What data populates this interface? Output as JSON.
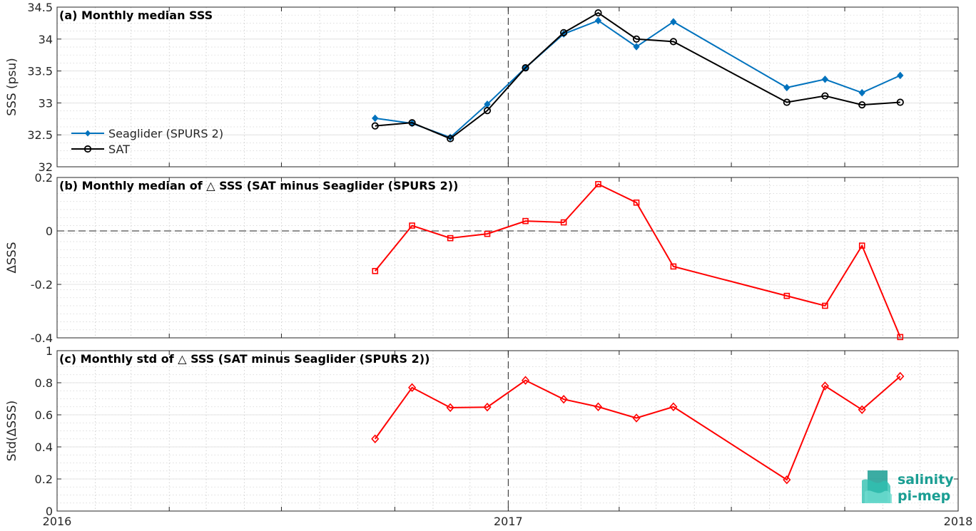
{
  "chart_data": [
    {
      "type": "line",
      "panel": "a",
      "title": "(a) Monthly median SSS",
      "ylabel": "SSS (psu)",
      "ylim": [
        32,
        34.5
      ],
      "yticks": [
        32,
        32.5,
        33,
        33.5,
        34,
        34.5
      ],
      "ytick_labels": [
        "32",
        "32.5",
        "33",
        "33.5",
        "34",
        "34.5"
      ],
      "xlim": [
        "2016-01-01",
        "2018-01-01"
      ],
      "grid": true,
      "legend_position": "left",
      "reference_x": "2017-01-01",
      "series": [
        {
          "name": "Seaglider (SPURS 2)",
          "color": "#0072bd",
          "marker": "filled-diamond",
          "x": [
            "2016-09-15",
            "2016-10-15",
            "2016-11-15",
            "2016-12-15",
            "2017-01-15",
            "2017-02-15",
            "2017-03-15",
            "2017-04-15",
            "2017-05-15",
            "2017-08-15",
            "2017-09-15",
            "2017-10-15",
            "2017-11-15"
          ],
          "values": [
            32.76,
            32.68,
            32.46,
            32.98,
            33.55,
            34.08,
            34.29,
            33.88,
            34.27,
            33.24,
            33.37,
            33.16,
            33.43
          ]
        },
        {
          "name": "SAT",
          "color": "#000000",
          "marker": "open-circle",
          "x": [
            "2016-09-15",
            "2016-10-15",
            "2016-11-15",
            "2016-12-15",
            "2017-01-15",
            "2017-02-15",
            "2017-03-15",
            "2017-04-15",
            "2017-05-15",
            "2017-08-15",
            "2017-09-15",
            "2017-10-15",
            "2017-11-15"
          ],
          "values": [
            32.64,
            32.69,
            32.44,
            32.88,
            33.55,
            34.1,
            34.41,
            34.0,
            33.96,
            33.01,
            33.11,
            32.97,
            33.01
          ]
        }
      ]
    },
    {
      "type": "line",
      "panel": "b",
      "title": "(b) Monthly median of △ SSS (SAT minus Seaglider (SPURS 2))",
      "ylabel": "ΔSSS",
      "ylim": [
        -0.4,
        0.2
      ],
      "yticks": [
        -0.4,
        -0.2,
        0,
        0.2
      ],
      "ytick_labels": [
        "-0.4",
        "-0.2",
        "0",
        "0.2"
      ],
      "xlim": [
        "2016-01-01",
        "2018-01-01"
      ],
      "grid": true,
      "reference_y": 0,
      "reference_x": "2017-01-01",
      "series": [
        {
          "color": "#ff0000",
          "marker": "open-square",
          "x": [
            "2016-09-15",
            "2016-10-15",
            "2016-11-15",
            "2016-12-15",
            "2017-01-15",
            "2017-02-15",
            "2017-03-15",
            "2017-04-15",
            "2017-05-15",
            "2017-08-15",
            "2017-09-15",
            "2017-10-15",
            "2017-11-15"
          ],
          "values": [
            -0.15,
            0.02,
            -0.027,
            -0.011,
            0.037,
            0.032,
            0.175,
            0.106,
            -0.133,
            -0.243,
            -0.28,
            -0.055,
            -0.397
          ]
        }
      ]
    },
    {
      "type": "line",
      "panel": "c",
      "title": "(c) Monthly std of △ SSS (SAT minus Seaglider (SPURS 2))",
      "ylabel": "Std(ΔSSS)",
      "ylim": [
        0,
        1
      ],
      "yticks": [
        0,
        0.2,
        0.4,
        0.6,
        0.8,
        1
      ],
      "ytick_labels": [
        "0",
        "0.2",
        "0.4",
        "0.6",
        "0.8",
        "1"
      ],
      "xlim": [
        "2016-01-01",
        "2018-01-01"
      ],
      "xticks": [
        "2016-01-01",
        "2017-01-01",
        "2018-01-01"
      ],
      "xtick_labels": [
        "2016",
        "2017",
        "2018"
      ],
      "grid": true,
      "reference_x": "2017-01-01",
      "series": [
        {
          "color": "#ff0000",
          "marker": "open-diamond",
          "x": [
            "2016-09-15",
            "2016-10-15",
            "2016-11-15",
            "2016-12-15",
            "2017-01-15",
            "2017-02-15",
            "2017-03-15",
            "2017-04-15",
            "2017-05-15",
            "2017-08-15",
            "2017-09-15",
            "2017-10-15",
            "2017-11-15"
          ],
          "values": [
            0.45,
            0.77,
            0.645,
            0.648,
            0.815,
            0.697,
            0.65,
            0.58,
            0.65,
            0.195,
            0.78,
            0.632,
            0.84
          ]
        }
      ]
    }
  ],
  "logo": {
    "line1": "salinity",
    "line2": "pi-mep",
    "color": "#1a9e93"
  }
}
